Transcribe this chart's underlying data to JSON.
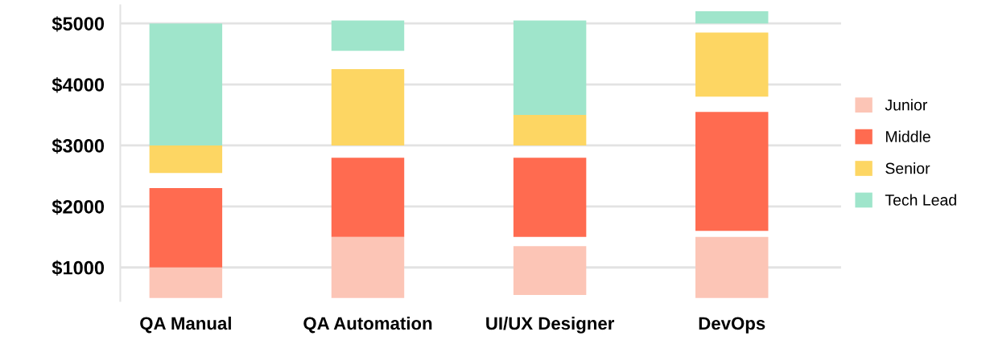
{
  "chart_data": {
    "type": "bar",
    "categories": [
      "QA Manual",
      "QA Automation",
      "UI/UX Designer",
      "DevOps"
    ],
    "series": [
      {
        "name": "Junior",
        "color": "#fcc5b6",
        "base": [
          500,
          500,
          550,
          500
        ],
        "values": [
          500,
          1000,
          800,
          1000
        ]
      },
      {
        "name": "Middle",
        "color": "#ff6b50",
        "base": [
          1000,
          1500,
          1500,
          1600
        ],
        "values": [
          1300,
          1300,
          1300,
          1950
        ]
      },
      {
        "name": "Senior",
        "color": "#fdd663",
        "base": [
          2550,
          3000,
          3000,
          3800
        ],
        "values": [
          450,
          1250,
          500,
          1050
        ]
      },
      {
        "name": "Tech Lead",
        "color": "#9fe5cb",
        "base": [
          3000,
          4550,
          3500,
          5000
        ],
        "values": [
          2000,
          500,
          1550,
          200
        ]
      }
    ],
    "yticks": [
      {
        "value": 1000,
        "label": "$1000"
      },
      {
        "value": 2000,
        "label": "$2000"
      },
      {
        "value": 3000,
        "label": "$3000"
      },
      {
        "value": 4000,
        "label": "$4000"
      },
      {
        "value": 5000,
        "label": "$5000"
      }
    ],
    "ylim": [
      450,
      5300
    ],
    "grid": "y",
    "legend": "right"
  }
}
